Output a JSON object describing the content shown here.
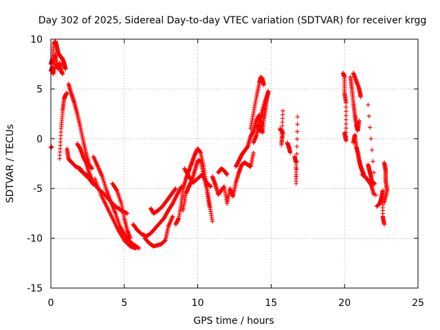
{
  "chart_data": {
    "type": "scatter",
    "title": "Day 302 of 2025, Sidereal Day-to-day VTEC variation (SDTVAR) for receiver krgg",
    "xlabel": "GPS time / hours",
    "ylabel": "SDTVAR / TECUs",
    "xlim": [
      0,
      25
    ],
    "ylim": [
      -15,
      10
    ],
    "x_ticks": [
      0,
      5,
      10,
      15,
      20,
      25
    ],
    "y_ticks": [
      -15,
      -10,
      -5,
      0,
      5,
      10
    ],
    "x_tick_labels": [
      "0",
      "5",
      "10",
      "15",
      "20",
      "25"
    ],
    "y_tick_labels": [
      "-15",
      "-10",
      "-5",
      "0",
      "5",
      "10"
    ],
    "grid": true,
    "marker": "+",
    "color": "#ff0000",
    "series": [
      {
        "name": "trace-a",
        "points": [
          [
            0.0,
            7.5
          ],
          [
            0.1,
            8.0
          ],
          [
            0.2,
            9.5
          ],
          [
            0.3,
            9.8
          ],
          [
            0.4,
            9.3
          ],
          [
            0.5,
            8.6
          ],
          [
            0.6,
            8.4
          ],
          [
            0.7,
            8.2
          ],
          [
            0.8,
            8.0
          ],
          [
            0.9,
            7.6
          ],
          [
            1.0,
            7.0
          ]
        ]
      },
      {
        "name": "trace-b",
        "points": [
          [
            0.0,
            6.8
          ],
          [
            0.1,
            7.2
          ],
          [
            0.15,
            6.5
          ],
          [
            0.2,
            7.2
          ],
          [
            0.3,
            8.5
          ],
          [
            0.4,
            7.4
          ],
          [
            0.5,
            7.0
          ],
          [
            0.6,
            7.6
          ],
          [
            0.7,
            6.8
          ],
          [
            0.8,
            6.5
          ]
        ]
      },
      {
        "name": "trace-c",
        "points": [
          [
            0.0,
            -0.9
          ],
          [
            0.05,
            -0.8
          ]
        ]
      },
      {
        "name": "trace-d",
        "points": [
          [
            0.6,
            -2.0
          ],
          [
            0.7,
            1.0
          ],
          [
            0.8,
            2.8
          ],
          [
            0.9,
            4.0
          ],
          [
            1.0,
            4.4
          ],
          [
            1.1,
            4.6
          ]
        ]
      },
      {
        "name": "trace-e",
        "points": [
          [
            1.1,
            -1.0
          ],
          [
            1.2,
            -2.0
          ],
          [
            1.3,
            -2.2
          ],
          [
            1.5,
            -2.5
          ],
          [
            1.7,
            -2.8
          ],
          [
            2.0,
            -3.0
          ],
          [
            2.3,
            -3.6
          ],
          [
            2.6,
            -4.0
          ],
          [
            2.9,
            -4.6
          ]
        ]
      },
      {
        "name": "trace-f",
        "points": [
          [
            1.2,
            5.5
          ],
          [
            1.4,
            4.5
          ],
          [
            1.6,
            3.6
          ],
          [
            1.8,
            2.5
          ],
          [
            2.0,
            1.2
          ],
          [
            2.2,
            -0.2
          ],
          [
            2.4,
            -1.5
          ],
          [
            2.6,
            -2.6
          ],
          [
            2.8,
            -3.0
          ]
        ]
      },
      {
        "name": "trace-g",
        "points": [
          [
            1.8,
            -0.5
          ],
          [
            2.0,
            -1.0
          ],
          [
            2.2,
            -1.8
          ],
          [
            2.4,
            -2.4
          ],
          [
            2.6,
            -3.4
          ],
          [
            2.8,
            -4.2
          ]
        ]
      },
      {
        "name": "trace-h",
        "points": [
          [
            2.0,
            -3.2
          ],
          [
            2.4,
            -3.6
          ],
          [
            2.8,
            -4.2
          ],
          [
            3.2,
            -5.0
          ],
          [
            3.6,
            -5.5
          ],
          [
            4.0,
            -6.2
          ],
          [
            4.4,
            -6.8
          ],
          [
            4.8,
            -7.2
          ],
          [
            5.2,
            -7.5
          ]
        ]
      },
      {
        "name": "trace-i",
        "points": [
          [
            2.9,
            -1.8
          ],
          [
            3.2,
            -2.8
          ],
          [
            3.5,
            -3.8
          ],
          [
            3.8,
            -5.2
          ],
          [
            4.1,
            -6.4
          ],
          [
            4.4,
            -7.5
          ],
          [
            4.7,
            -8.8
          ],
          [
            5.0,
            -9.6
          ],
          [
            5.3,
            -10.2
          ],
          [
            5.6,
            -10.6
          ],
          [
            6.0,
            -11.0
          ]
        ]
      },
      {
        "name": "trace-j",
        "points": [
          [
            3.0,
            -4.0
          ],
          [
            3.4,
            -5.6
          ],
          [
            3.8,
            -6.8
          ],
          [
            4.2,
            -8.0
          ],
          [
            4.6,
            -9.2
          ],
          [
            5.0,
            -10.2
          ],
          [
            5.4,
            -10.8
          ],
          [
            5.8,
            -11.0
          ]
        ]
      },
      {
        "name": "trace-k",
        "points": [
          [
            4.2,
            -4.5
          ],
          [
            4.5,
            -5.2
          ],
          [
            4.8,
            -6.5
          ],
          [
            5.0,
            -8.0
          ],
          [
            5.2,
            -9.2
          ],
          [
            5.4,
            -10.0
          ]
        ]
      },
      {
        "name": "trace-l",
        "points": [
          [
            5.6,
            -8.6
          ],
          [
            5.9,
            -9.2
          ],
          [
            6.2,
            -9.6
          ],
          [
            6.5,
            -9.8
          ],
          [
            6.8,
            -9.5
          ],
          [
            7.1,
            -9.0
          ],
          [
            7.4,
            -8.5
          ],
          [
            7.7,
            -8.0
          ],
          [
            8.0,
            -7.2
          ],
          [
            8.3,
            -6.5
          ],
          [
            8.6,
            -5.6
          ],
          [
            8.9,
            -4.8
          ]
        ]
      },
      {
        "name": "trace-m",
        "points": [
          [
            6.4,
            -10.0
          ],
          [
            6.7,
            -10.5
          ],
          [
            7.0,
            -10.8
          ],
          [
            7.5,
            -10.6
          ],
          [
            7.8,
            -10.2
          ],
          [
            8.0,
            -8.8
          ],
          [
            8.3,
            -7.8
          ]
        ]
      },
      {
        "name": "trace-n",
        "points": [
          [
            6.8,
            -7.0
          ],
          [
            7.0,
            -7.5
          ],
          [
            7.3,
            -7.2
          ],
          [
            7.6,
            -6.8
          ],
          [
            7.9,
            -6.2
          ],
          [
            8.2,
            -5.6
          ],
          [
            8.5,
            -5.0
          ]
        ]
      },
      {
        "name": "trace-o",
        "points": [
          [
            8.5,
            -8.6
          ],
          [
            8.7,
            -8.0
          ],
          [
            8.9,
            -6.4
          ],
          [
            9.0,
            -5.0
          ],
          [
            9.2,
            -4.0
          ],
          [
            9.4,
            -3.2
          ],
          [
            9.6,
            -2.4
          ],
          [
            9.8,
            -1.6
          ],
          [
            10.0,
            -1.0
          ],
          [
            10.2,
            -1.4
          ],
          [
            10.4,
            -2.8
          ],
          [
            10.6,
            -4.6
          ],
          [
            10.8,
            -6.5
          ],
          [
            11.0,
            -8.3
          ]
        ]
      },
      {
        "name": "trace-p",
        "points": [
          [
            9.0,
            -7.2
          ],
          [
            9.2,
            -5.5
          ],
          [
            9.4,
            -4.8
          ],
          [
            9.6,
            -4.2
          ],
          [
            9.8,
            -3.2
          ],
          [
            10.0,
            -2.2
          ],
          [
            10.2,
            -2.2
          ],
          [
            10.4,
            -3.6
          ],
          [
            10.6,
            -5.0
          ],
          [
            10.8,
            -6.8
          ]
        ]
      },
      {
        "name": "trace-q",
        "points": [
          [
            9.1,
            -3.0
          ],
          [
            9.4,
            -3.8
          ],
          [
            9.7,
            -4.4
          ],
          [
            10.0,
            -4.0
          ],
          [
            10.3,
            -3.6
          ],
          [
            10.6,
            -4.4
          ],
          [
            10.9,
            -4.8
          ]
        ]
      },
      {
        "name": "trace-r",
        "points": [
          [
            11.0,
            -3.8
          ],
          [
            11.2,
            -4.6
          ],
          [
            11.4,
            -5.6
          ],
          [
            11.6,
            -5.2
          ],
          [
            11.8,
            -4.8
          ],
          [
            12.0,
            -6.5
          ],
          [
            12.2,
            -5.0
          ],
          [
            12.4,
            -5.8
          ],
          [
            12.6,
            -4.4
          ],
          [
            12.8,
            -3.4
          ],
          [
            13.0,
            -2.6
          ],
          [
            13.2,
            -2.4
          ],
          [
            13.4,
            -2.6
          ],
          [
            13.6,
            -2.8
          ],
          [
            13.8,
            -1.4
          ]
        ]
      },
      {
        "name": "trace-s",
        "points": [
          [
            11.4,
            -3.4
          ],
          [
            11.6,
            -3.0
          ],
          [
            11.8,
            -3.2
          ],
          [
            12.0,
            -3.6
          ]
        ]
      },
      {
        "name": "trace-t",
        "points": [
          [
            12.6,
            -2.8
          ],
          [
            12.8,
            -2.2
          ],
          [
            13.0,
            -1.6
          ],
          [
            13.2,
            -1.2
          ],
          [
            13.4,
            -0.8
          ],
          [
            13.6,
            0.2
          ],
          [
            13.8,
            0.8
          ],
          [
            14.0,
            1.8
          ],
          [
            14.2,
            2.4
          ],
          [
            14.4,
            1.2
          ]
        ]
      },
      {
        "name": "trace-u",
        "points": [
          [
            13.6,
            1.0
          ],
          [
            13.8,
            2.6
          ],
          [
            14.0,
            4.2
          ],
          [
            14.2,
            5.6
          ],
          [
            14.3,
            6.2
          ],
          [
            14.4,
            6.0
          ],
          [
            14.5,
            5.4
          ]
        ]
      },
      {
        "name": "trace-v",
        "points": [
          [
            14.1,
            1.4
          ],
          [
            14.2,
            0.8
          ],
          [
            14.3,
            1.2
          ],
          [
            14.4,
            0.6
          ],
          [
            14.5,
            2.0
          ],
          [
            14.6,
            3.0
          ],
          [
            14.7,
            4.0
          ],
          [
            14.8,
            4.8
          ]
        ]
      },
      {
        "name": "trace-w",
        "points": [
          [
            13.8,
            -0.4
          ],
          [
            14.0,
            0.4
          ],
          [
            14.2,
            1.6
          ],
          [
            14.4,
            2.8
          ],
          [
            14.6,
            3.8
          ],
          [
            14.8,
            4.6
          ]
        ]
      },
      {
        "name": "trace-x",
        "points": [
          [
            15.6,
            1.0
          ],
          [
            15.7,
            0.8
          ],
          [
            15.8,
            0.6
          ],
          [
            15.7,
            -0.6
          ],
          [
            15.8,
            2.8
          ]
        ]
      },
      {
        "name": "trace-y",
        "points": [
          [
            16.1,
            -0.4
          ],
          [
            16.2,
            -0.8
          ],
          [
            16.3,
            -1.4
          ]
        ]
      },
      {
        "name": "trace-z",
        "points": [
          [
            16.6,
            -1.8
          ],
          [
            16.7,
            -2.4
          ],
          [
            16.7,
            -4.5
          ],
          [
            16.8,
            2.2
          ]
        ]
      },
      {
        "name": "trace-aa",
        "points": [
          [
            19.9,
            6.6
          ],
          [
            20.0,
            6.2
          ],
          [
            20.0,
            4.6
          ],
          [
            20.1,
            3.6
          ],
          [
            20.1,
            -0.2
          ],
          [
            20.0,
            0.6
          ]
        ]
      },
      {
        "name": "trace-ab",
        "points": [
          [
            20.4,
            6.2
          ],
          [
            20.5,
            5.0
          ],
          [
            20.6,
            3.6
          ],
          [
            20.7,
            2.4
          ],
          [
            20.8,
            1.4
          ],
          [
            20.9,
            0.8
          ],
          [
            21.0,
            1.8
          ]
        ]
      },
      {
        "name": "trace-ac",
        "points": [
          [
            20.6,
            6.6
          ],
          [
            20.8,
            5.8
          ],
          [
            21.0,
            5.0
          ],
          [
            21.1,
            4.2
          ]
        ]
      },
      {
        "name": "trace-ad",
        "points": [
          [
            20.6,
            -0.4
          ],
          [
            20.7,
            0.4
          ],
          [
            20.8,
            -0.8
          ],
          [
            20.9,
            -1.4
          ],
          [
            21.0,
            -2.2
          ],
          [
            21.1,
            -2.8
          ],
          [
            21.2,
            -3.2
          ],
          [
            21.3,
            -3.6
          ]
        ]
      },
      {
        "name": "trace-ae",
        "points": [
          [
            21.2,
            -3.6
          ],
          [
            21.4,
            -3.8
          ],
          [
            21.6,
            -4.2
          ],
          [
            21.8,
            -4.6
          ],
          [
            22.0,
            -5.6
          ]
        ]
      },
      {
        "name": "trace-af",
        "points": [
          [
            21.6,
            -2.6
          ],
          [
            21.7,
            -3.2
          ],
          [
            21.8,
            -3.8
          ],
          [
            21.9,
            -4.6
          ],
          [
            22.0,
            -4.4
          ]
        ]
      },
      {
        "name": "trace-ag",
        "points": [
          [
            21.6,
            3.4
          ],
          [
            22.2,
            -6.8
          ],
          [
            22.4,
            -6.5
          ],
          [
            22.5,
            -6.0
          ],
          [
            22.6,
            -5.2
          ],
          [
            22.6,
            -7.8
          ],
          [
            22.7,
            -8.6
          ]
        ]
      },
      {
        "name": "trace-ah",
        "points": [
          [
            22.7,
            -2.4
          ],
          [
            22.8,
            -3.2
          ],
          [
            22.8,
            -4.2
          ],
          [
            22.9,
            -5.2
          ],
          [
            22.7,
            -6.4
          ]
        ]
      }
    ]
  }
}
